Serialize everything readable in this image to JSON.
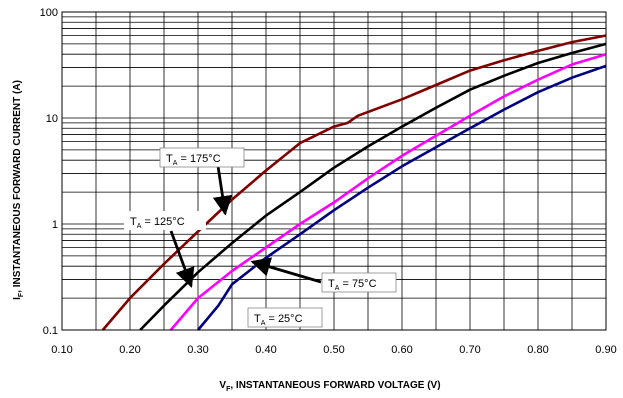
{
  "chart_data": {
    "type": "line",
    "title": "",
    "xlabel": {
      "prefix": "V",
      "sub": "F",
      "rest": ", INSTANTANEOUS FORWARD VOLTAGE (V)"
    },
    "ylabel": {
      "prefix": "I",
      "sub": "F",
      "rest": ", INSTANTANEOUS FORWARD CURRENT (A)"
    },
    "xlim": [
      0.1,
      0.9
    ],
    "ylim": [
      0.1,
      100
    ],
    "yscale": "log",
    "grid": true,
    "x_ticks": [
      0.1,
      0.2,
      0.3,
      0.4,
      0.5,
      0.6,
      0.7,
      0.8,
      0.9
    ],
    "x_tick_labels": [
      "0.10",
      "0.20",
      "0.30",
      "0.40",
      "0.50",
      "0.60",
      "0.70",
      "0.80",
      "0.90"
    ],
    "y_ticks": [
      0.1,
      1,
      10,
      100
    ],
    "y_tick_labels": [
      "0.1",
      "1",
      "10",
      "100"
    ],
    "series": [
      {
        "id": "t175",
        "color": "#800000",
        "x": [
          0.16,
          0.2,
          0.25,
          0.3,
          0.35,
          0.4,
          0.45,
          0.5,
          0.52,
          0.535,
          0.6,
          0.65,
          0.7,
          0.75,
          0.8,
          0.85,
          0.9
        ],
        "y": [
          0.1,
          0.2,
          0.42,
          0.85,
          1.7,
          3.2,
          5.8,
          8.3,
          9.0,
          10.5,
          15.0,
          20.5,
          28.0,
          35.0,
          43.0,
          52.0,
          60.0
        ]
      },
      {
        "id": "t125",
        "color": "#000000",
        "x": [
          0.215,
          0.25,
          0.3,
          0.35,
          0.4,
          0.45,
          0.5,
          0.55,
          0.6,
          0.65,
          0.7,
          0.75,
          0.8,
          0.85,
          0.9
        ],
        "y": [
          0.1,
          0.17,
          0.35,
          0.66,
          1.2,
          2.0,
          3.4,
          5.4,
          8.3,
          12.5,
          18.5,
          25.0,
          33.0,
          41.0,
          50.0
        ]
      },
      {
        "id": "t75",
        "color": "#FF00FF",
        "x": [
          0.26,
          0.3,
          0.35,
          0.4,
          0.45,
          0.5,
          0.55,
          0.6,
          0.65,
          0.7,
          0.75,
          0.8,
          0.85,
          0.9
        ],
        "y": [
          0.1,
          0.2,
          0.36,
          0.6,
          1.0,
          1.6,
          2.7,
          4.4,
          6.8,
          10.5,
          16.0,
          23.0,
          32.0,
          40.0
        ]
      },
      {
        "id": "t25",
        "color": "#000080",
        "x": [
          0.3,
          0.33,
          0.35,
          0.4,
          0.45,
          0.5,
          0.55,
          0.6,
          0.65,
          0.7,
          0.75,
          0.8,
          0.85,
          0.9
        ],
        "y": [
          0.1,
          0.17,
          0.27,
          0.48,
          0.8,
          1.35,
          2.2,
          3.5,
          5.3,
          8.0,
          12.0,
          17.5,
          24.0,
          31.0
        ]
      }
    ],
    "annotations": [
      {
        "id": "ann-175",
        "prefix": "T",
        "sub": "A",
        "rest": " = 175°C",
        "boxed": true,
        "arrow_to": [
          0.34,
          1.25
        ]
      },
      {
        "id": "ann-125",
        "prefix": "T",
        "sub": "A",
        "rest": " = 125°C",
        "boxed": false,
        "arrow_to": [
          0.29,
          0.26
        ]
      },
      {
        "id": "ann-75",
        "prefix": "T",
        "sub": "A",
        "rest": " = 75°C",
        "boxed": true,
        "arrow_to": [
          0.38,
          0.44
        ]
      },
      {
        "id": "ann-25",
        "prefix": "T",
        "sub": "A",
        "rest": " = 25°C",
        "boxed": true,
        "arrow_to": null
      }
    ]
  }
}
